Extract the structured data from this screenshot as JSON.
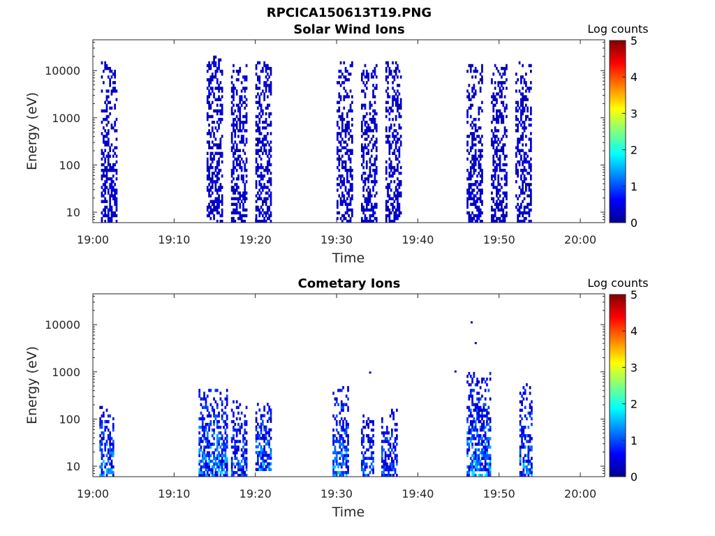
{
  "figure": {
    "title": "RPCICA150613T19.PNG"
  },
  "colorbar": {
    "label": "Log counts",
    "ticks": [
      "0",
      "1",
      "2",
      "3",
      "4",
      "5"
    ],
    "range": [
      0,
      5
    ],
    "colormap": "jet"
  },
  "chart_data": [
    {
      "type": "heatmap",
      "title": "Solar Wind Ions",
      "xlabel": "Time",
      "ylabel": "Energy (eV)",
      "y_scale": "log",
      "x_range": [
        "19:00",
        "20:03"
      ],
      "y_range": [
        6,
        45000
      ],
      "x_ticks": [
        "19:00",
        "19:10",
        "19:20",
        "19:30",
        "19:40",
        "19:50",
        "20:00"
      ],
      "y_ticks": [
        "10",
        "100",
        "1000",
        "10000"
      ],
      "colorbar_label": "Log counts",
      "color_range": [
        0,
        5
      ],
      "bursts": [
        {
          "start": "19:01",
          "end": "19:03",
          "energy_min": 6,
          "energy_max": 15000,
          "log_counts_max": 0.7
        },
        {
          "start": "19:14",
          "end": "19:16",
          "energy_min": 6,
          "energy_max": 20000,
          "log_counts_max": 0.7
        },
        {
          "start": "19:17",
          "end": "19:19",
          "energy_min": 6,
          "energy_max": 13000,
          "log_counts_max": 0.7
        },
        {
          "start": "19:20",
          "end": "19:22",
          "energy_min": 6,
          "energy_max": 15000,
          "log_counts_max": 0.7
        },
        {
          "start": "19:30",
          "end": "19:32",
          "energy_min": 6,
          "energy_max": 15000,
          "log_counts_max": 0.7
        },
        {
          "start": "19:33",
          "end": "19:35",
          "energy_min": 6,
          "energy_max": 12000,
          "log_counts_max": 0.7
        },
        {
          "start": "19:36",
          "end": "19:38",
          "energy_min": 6,
          "energy_max": 15000,
          "log_counts_max": 0.7
        },
        {
          "start": "19:46",
          "end": "19:48",
          "energy_min": 6,
          "energy_max": 13000,
          "log_counts_max": 0.7
        },
        {
          "start": "19:49",
          "end": "19:51",
          "energy_min": 6,
          "energy_max": 12000,
          "log_counts_max": 0.7
        },
        {
          "start": "19:52",
          "end": "19:54",
          "energy_min": 6,
          "energy_max": 14000,
          "log_counts_max": 0.7
        }
      ]
    },
    {
      "type": "heatmap",
      "title": "Cometary Ions",
      "xlabel": "Time",
      "ylabel": "Energy (eV)",
      "y_scale": "log",
      "x_range": [
        "19:00",
        "20:03"
      ],
      "y_range": [
        6,
        45000
      ],
      "x_ticks": [
        "19:00",
        "19:10",
        "19:20",
        "19:30",
        "19:40",
        "19:50",
        "20:00"
      ],
      "y_ticks": [
        "10",
        "100",
        "1000",
        "10000"
      ],
      "colorbar_label": "Log counts",
      "color_range": [
        0,
        5
      ],
      "bursts": [
        {
          "start": "19:00.8",
          "end": "19:02.5",
          "energy_min": 6,
          "energy_max": 180,
          "log_counts_max": 1.8
        },
        {
          "start": "19:13",
          "end": "19:16.5",
          "energy_min": 6,
          "energy_max": 400,
          "log_counts_max": 1.9
        },
        {
          "start": "19:17",
          "end": "19:19",
          "energy_min": 6,
          "energy_max": 220,
          "log_counts_max": 1.5
        },
        {
          "start": "19:20",
          "end": "19:22",
          "energy_min": 8,
          "energy_max": 200,
          "log_counts_max": 1.8
        },
        {
          "start": "19:29.5",
          "end": "19:31.5",
          "energy_min": 6,
          "energy_max": 450,
          "log_counts_max": 1.8
        },
        {
          "start": "19:33",
          "end": "19:34.5",
          "energy_min": 6,
          "energy_max": 120,
          "log_counts_max": 1.5
        },
        {
          "start": "19:35.5",
          "end": "19:37.5",
          "energy_min": 6,
          "energy_max": 160,
          "log_counts_max": 1.5
        },
        {
          "start": "19:46",
          "end": "19:49",
          "energy_min": 6,
          "energy_max": 900,
          "log_counts_max": 1.9
        },
        {
          "start": "19:52.5",
          "end": "19:54",
          "energy_min": 6,
          "energy_max": 500,
          "log_counts_max": 1.7
        }
      ],
      "isolated_points": [
        {
          "time": "19:34",
          "energy": 950
        },
        {
          "time": "19:44.5",
          "energy": 1000
        },
        {
          "time": "19:46.5",
          "energy": 11000
        },
        {
          "time": "19:47",
          "energy": 4000
        }
      ]
    }
  ]
}
